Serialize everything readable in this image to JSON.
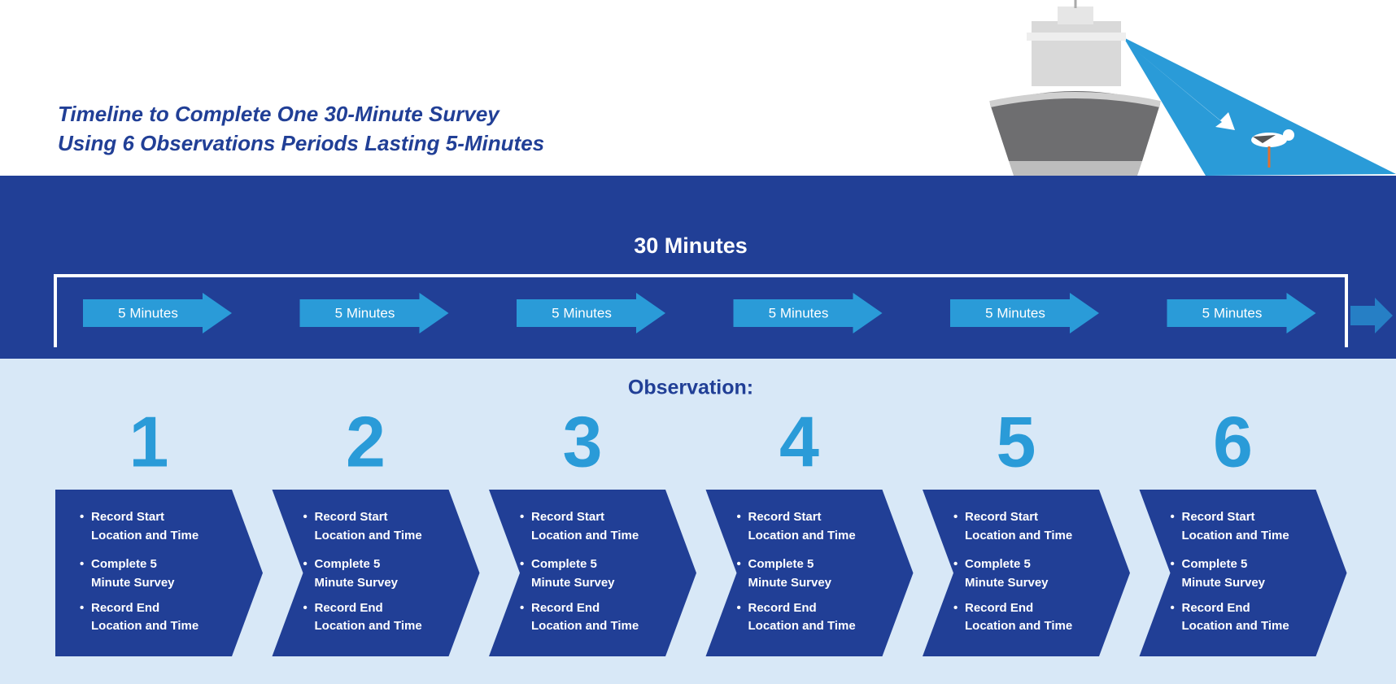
{
  "title": [
    "Timeline to Complete One 30-Minute Survey",
    "Using 6 Observations Periods Lasting 5-Minutes"
  ],
  "total": "30 Minutes",
  "periods": [
    "5 Minutes",
    "5 Minutes",
    "5 Minutes",
    "5 Minutes",
    "5 Minutes",
    "5 Minutes"
  ],
  "observation_heading": "Observation:",
  "steps": [
    {
      "number": "1",
      "bullets": [
        [
          "Record Start",
          "Location and Time"
        ],
        [
          "Complete 5",
          "Minute Survey"
        ],
        [
          "Record End",
          "Location and Time"
        ]
      ]
    },
    {
      "number": "2",
      "bullets": [
        [
          "Record Start",
          "Location and Time"
        ],
        [
          "Complete 5",
          "Minute Survey"
        ],
        [
          "Record End",
          "Location and Time"
        ]
      ]
    },
    {
      "number": "3",
      "bullets": [
        [
          "Record Start",
          "Location and Time"
        ],
        [
          "Complete 5",
          "Minute Survey"
        ],
        [
          "Record End",
          "Location and Time"
        ]
      ]
    },
    {
      "number": "4",
      "bullets": [
        [
          "Record Start",
          "Location and Time"
        ],
        [
          "Complete 5",
          "Minute Survey"
        ],
        [
          "Record End",
          "Location and Time"
        ]
      ]
    },
    {
      "number": "5",
      "bullets": [
        [
          "Record Start",
          "Location and Time"
        ],
        [
          "Complete 5",
          "Minute Survey"
        ],
        [
          "Record End",
          "Location and Time"
        ]
      ]
    },
    {
      "number": "6",
      "bullets": [
        [
          "Record Start",
          "Location and Time"
        ],
        [
          "Complete 5",
          "Minute Survey"
        ],
        [
          "Record End",
          "Location and Time"
        ]
      ]
    }
  ]
}
